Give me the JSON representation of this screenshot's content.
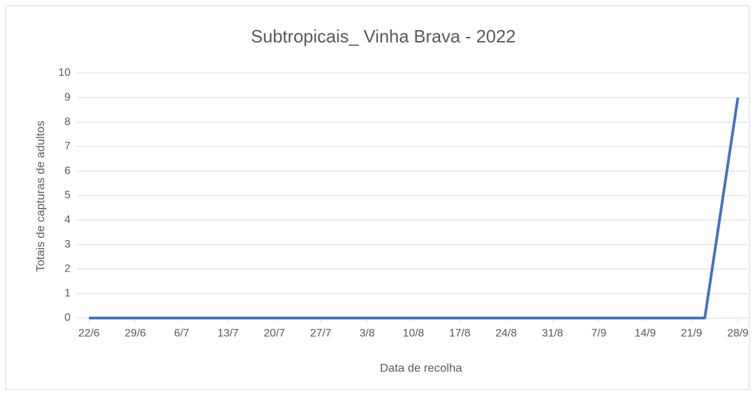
{
  "chart_data": {
    "type": "line",
    "title": "Subtropicais_ Vinha Brava - 2022",
    "xlabel": "Data de recolha",
    "ylabel": "Totais de capturas de adultos",
    "xlim": [
      0,
      98
    ],
    "xticks": [
      {
        "value": 0,
        "label": "22/6"
      },
      {
        "value": 7,
        "label": "29/6"
      },
      {
        "value": 14,
        "label": "6/7"
      },
      {
        "value": 21,
        "label": "13/7"
      },
      {
        "value": 28,
        "label": "20/7"
      },
      {
        "value": 35,
        "label": "27/7"
      },
      {
        "value": 42,
        "label": "3/8"
      },
      {
        "value": 49,
        "label": "10/8"
      },
      {
        "value": 56,
        "label": "17/8"
      },
      {
        "value": 63,
        "label": "24/8"
      },
      {
        "value": 70,
        "label": "31/8"
      },
      {
        "value": 77,
        "label": "7/9"
      },
      {
        "value": 84,
        "label": "14/9"
      },
      {
        "value": 91,
        "label": "21/9"
      },
      {
        "value": 98,
        "label": "28/9"
      }
    ],
    "ylim": [
      0,
      10
    ],
    "yticks": [
      0,
      1,
      2,
      3,
      4,
      5,
      6,
      7,
      8,
      9,
      10
    ],
    "grid": true,
    "series": [
      {
        "color": "#4472c4",
        "x": [
          0,
          93,
          98
        ],
        "values": [
          0,
          0,
          9
        ]
      }
    ]
  }
}
